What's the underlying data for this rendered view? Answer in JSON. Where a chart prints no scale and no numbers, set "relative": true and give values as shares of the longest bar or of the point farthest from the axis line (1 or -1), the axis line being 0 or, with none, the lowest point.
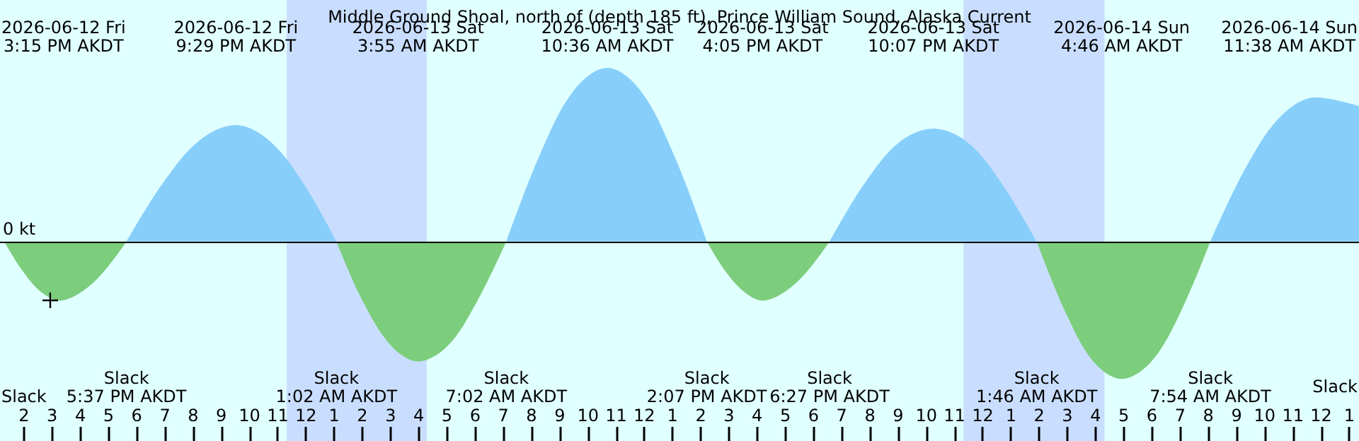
{
  "chart_data": {
    "type": "area",
    "relative": true,
    "title": "Middle Ground Shoal, north of (depth 185 ft), Prince William Sound, Alaska Current",
    "xlim": [
      "2026-06-12T13:09",
      "2026-06-14T13:09"
    ],
    "xticks": [
      {
        "value": "2026-06-12T14:00",
        "label": "2"
      },
      {
        "value": "2026-06-12T15:00",
        "label": "3"
      },
      {
        "value": "2026-06-12T16:00",
        "label": "4"
      },
      {
        "value": "2026-06-12T17:00",
        "label": "5"
      },
      {
        "value": "2026-06-12T18:00",
        "label": "6"
      },
      {
        "value": "2026-06-12T19:00",
        "label": "7"
      },
      {
        "value": "2026-06-12T20:00",
        "label": "8"
      },
      {
        "value": "2026-06-12T21:00",
        "label": "9"
      },
      {
        "value": "2026-06-12T22:00",
        "label": "10"
      },
      {
        "value": "2026-06-12T23:00",
        "label": "11"
      },
      {
        "value": "2026-06-13T00:00",
        "label": "12"
      },
      {
        "value": "2026-06-13T01:00",
        "label": "1"
      },
      {
        "value": "2026-06-13T02:00",
        "label": "2"
      },
      {
        "value": "2026-06-13T03:00",
        "label": "3"
      },
      {
        "value": "2026-06-13T04:00",
        "label": "4"
      },
      {
        "value": "2026-06-13T05:00",
        "label": "5"
      },
      {
        "value": "2026-06-13T06:00",
        "label": "6"
      },
      {
        "value": "2026-06-13T07:00",
        "label": "7"
      },
      {
        "value": "2026-06-13T08:00",
        "label": "8"
      },
      {
        "value": "2026-06-13T09:00",
        "label": "9"
      },
      {
        "value": "2026-06-13T10:00",
        "label": "10"
      },
      {
        "value": "2026-06-13T11:00",
        "label": "11"
      },
      {
        "value": "2026-06-13T12:00",
        "label": "12"
      },
      {
        "value": "2026-06-13T13:00",
        "label": "1"
      },
      {
        "value": "2026-06-13T14:00",
        "label": "2"
      },
      {
        "value": "2026-06-13T15:00",
        "label": "3"
      },
      {
        "value": "2026-06-13T16:00",
        "label": "4"
      },
      {
        "value": "2026-06-13T17:00",
        "label": "5"
      },
      {
        "value": "2026-06-13T18:00",
        "label": "6"
      },
      {
        "value": "2026-06-13T19:00",
        "label": "7"
      },
      {
        "value": "2026-06-13T20:00",
        "label": "8"
      },
      {
        "value": "2026-06-13T21:00",
        "label": "9"
      },
      {
        "value": "2026-06-13T22:00",
        "label": "10"
      },
      {
        "value": "2026-06-13T23:00",
        "label": "11"
      },
      {
        "value": "2026-06-14T00:00",
        "label": "12"
      },
      {
        "value": "2026-06-14T01:00",
        "label": "1"
      },
      {
        "value": "2026-06-14T02:00",
        "label": "2"
      },
      {
        "value": "2026-06-14T03:00",
        "label": "3"
      },
      {
        "value": "2026-06-14T04:00",
        "label": "4"
      },
      {
        "value": "2026-06-14T05:00",
        "label": "5"
      },
      {
        "value": "2026-06-14T06:00",
        "label": "6"
      },
      {
        "value": "2026-06-14T07:00",
        "label": "7"
      },
      {
        "value": "2026-06-14T08:00",
        "label": "8"
      },
      {
        "value": "2026-06-14T09:00",
        "label": "9"
      },
      {
        "value": "2026-06-14T10:00",
        "label": "10"
      },
      {
        "value": "2026-06-14T11:00",
        "label": "11"
      },
      {
        "value": "2026-06-14T12:00",
        "label": "12"
      },
      {
        "value": "2026-06-14T13:00",
        "label": "1"
      }
    ],
    "series": [
      {
        "color": "#87cefa",
        "x": [
          "2026-06-12T17:37",
          "2026-06-12T18:55",
          "2026-06-12T20:11",
          "2026-06-12T21:29",
          "2026-06-12T22:40",
          "2026-06-12T23:51",
          "2026-06-13T01:02",
          "2026-06-13T03:55",
          "2026-06-13T07:02",
          "2026-06-13T08:13",
          "2026-06-13T09:25",
          "2026-06-13T10:36",
          "2026-06-13T11:46",
          "2026-06-13T12:57",
          "2026-06-13T14:07",
          "2026-06-13T16:05",
          "2026-06-13T18:27",
          "2026-06-13T19:40",
          "2026-06-13T20:54",
          "2026-06-13T22:07",
          "2026-06-13T23:20",
          "2026-06-14T00:33",
          "2026-06-14T01:46",
          "2026-06-14T04:46",
          "2026-06-14T07:54",
          "2026-06-14T09:08",
          "2026-06-14T10:23",
          "2026-06-14T11:38",
          "2026-06-14T13:09"
        ],
        "values": [
          0,
          0.34,
          0.58,
          0.67,
          0.58,
          0.34,
          0,
          null,
          0,
          0.5,
          0.87,
          1,
          0.87,
          0.5,
          0,
          null,
          0,
          0.33,
          0.57,
          0.65,
          0.57,
          0.33,
          0,
          null,
          0,
          0.42,
          0.72,
          0.83,
          0.78
        ]
      },
      {
        "color": "#7ccd7c",
        "x": [
          "2026-06-12T13:18",
          "2026-06-12T13:57",
          "2026-06-12T14:36",
          "2026-06-12T15:15",
          "2026-06-12T16:02",
          "2026-06-12T16:50",
          "2026-06-12T17:37",
          "2026-06-12T21:29",
          "2026-06-13T01:02",
          "2026-06-13T01:59",
          "2026-06-13T02:58",
          "2026-06-13T03:55",
          "2026-06-13T04:58",
          "2026-06-13T05:59",
          "2026-06-13T07:02",
          "2026-06-13T10:36",
          "2026-06-13T14:07",
          "2026-06-13T14:46",
          "2026-06-13T15:26",
          "2026-06-13T16:05",
          "2026-06-13T16:52",
          "2026-06-13T17:40",
          "2026-06-13T18:27",
          "2026-06-13T22:07",
          "2026-06-14T01:46",
          "2026-06-14T02:46",
          "2026-06-14T03:46",
          "2026-06-14T04:46",
          "2026-06-14T05:49",
          "2026-06-14T06:52",
          "2026-06-14T07:54"
        ],
        "values": [
          0,
          -0.17,
          -0.29,
          -0.34,
          -0.29,
          -0.17,
          0,
          null,
          0,
          -0.35,
          -0.6,
          -0.69,
          -0.6,
          -0.35,
          0,
          null,
          0,
          -0.17,
          -0.29,
          -0.34,
          -0.29,
          -0.17,
          0,
          null,
          0,
          -0.4,
          -0.69,
          -0.79,
          -0.69,
          -0.4,
          0
        ]
      }
    ],
    "ref_lines": [
      {
        "axis": "y",
        "value": 0,
        "label": "0 kt",
        "color": "#000000"
      }
    ],
    "bands": [
      {
        "axis": "x",
        "from": "2026-06-12T23:19",
        "to": "2026-06-13T04:17",
        "color": "#c9deff"
      },
      {
        "axis": "x",
        "from": "2026-06-13T23:19",
        "to": "2026-06-14T04:19",
        "color": "#c9deff"
      }
    ],
    "grid": false,
    "marker": "none",
    "annotations": [
      "2026-06-12 Fri\n3:15 PM AKDT",
      "2026-06-12 Fri\n9:29 PM AKDT",
      "2026-06-13 Sat\n3:55 AM AKDT",
      "2026-06-13 Sat\n10:36 AM AKDT",
      "2026-06-13 Sat\n4:05 PM AKDT",
      "2026-06-13 Sat\n10:07 PM AKDT",
      "2026-06-14 Sun\n4:46 AM AKDT",
      "2026-06-14 Sun\n11:38 AM AKDT",
      "Slack",
      "Slack\n5:37 PM AKDT",
      "Slack\n1:02 AM AKDT",
      "Slack\n7:02 AM AKDT",
      "Slack\n2:07 PM AKDT",
      "Slack\n6:27 PM AKDT",
      "Slack\n1:46 AM AKDT",
      "Slack\n7:54 AM AKDT",
      "Slack"
    ]
  }
}
